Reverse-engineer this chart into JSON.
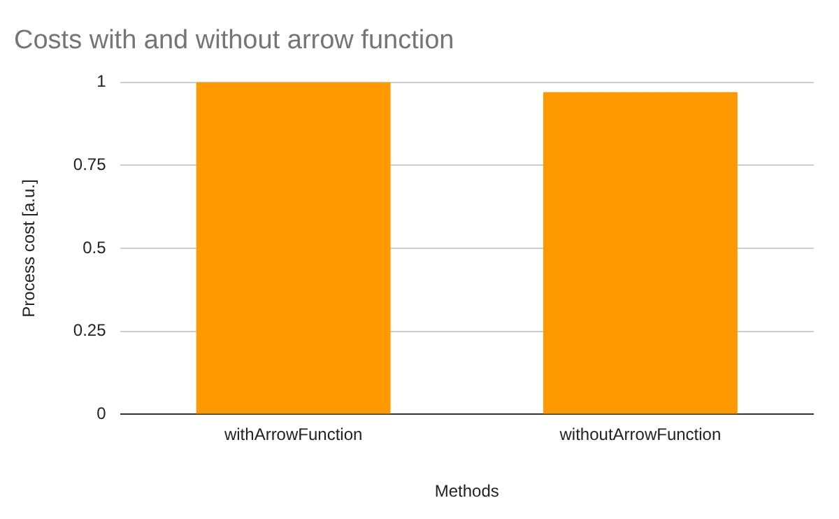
{
  "chart_data": {
    "type": "bar",
    "title": "Costs with and without arrow function",
    "xlabel": "Methods",
    "ylabel": "Process cost [a.u.]",
    "categories": [
      "withArrowFunction",
      "withoutArrowFunction"
    ],
    "series": [
      {
        "color": "#ff9900",
        "values": [
          1,
          0.97
        ]
      }
    ],
    "ylim": [
      0,
      1
    ],
    "yticks": [
      0,
      0.25,
      0.5,
      0.75,
      1
    ],
    "grid": "y",
    "legend": false
  }
}
